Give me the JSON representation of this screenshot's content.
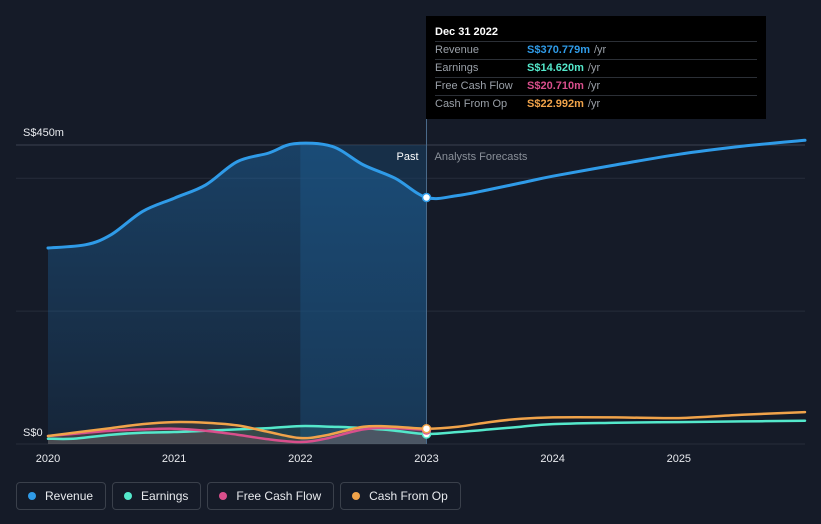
{
  "chart_data": {
    "type": "area",
    "x_ticks": [
      "2020",
      "2021",
      "2022",
      "2023",
      "2024",
      "2025"
    ],
    "ylim": [
      0,
      450
    ],
    "y_labels": {
      "top": "S$450m",
      "bottom": "S$0"
    },
    "zones": {
      "past": "Past",
      "forecast": "Analysts Forecasts"
    },
    "divider_x": 2023.0,
    "series": [
      {
        "name": "Revenue",
        "color": "#2f9be8",
        "points": [
          [
            2020.0,
            295
          ],
          [
            2020.3,
            300
          ],
          [
            2020.5,
            315
          ],
          [
            2020.75,
            350
          ],
          [
            2021.0,
            370
          ],
          [
            2021.25,
            390
          ],
          [
            2021.5,
            425
          ],
          [
            2021.75,
            438
          ],
          [
            2021.95,
            452
          ],
          [
            2022.25,
            448
          ],
          [
            2022.5,
            420
          ],
          [
            2022.75,
            400
          ],
          [
            2023.0,
            371
          ],
          [
            2023.25,
            374
          ],
          [
            2023.5,
            383
          ],
          [
            2023.75,
            393
          ],
          [
            2024.0,
            403
          ],
          [
            2024.5,
            420
          ],
          [
            2025.0,
            436
          ],
          [
            2025.5,
            448
          ],
          [
            2026.0,
            457
          ]
        ]
      },
      {
        "name": "Earnings",
        "color": "#54e8cb",
        "points": [
          [
            2020.0,
            8
          ],
          [
            2020.2,
            8
          ],
          [
            2020.5,
            14
          ],
          [
            2020.75,
            17
          ],
          [
            2021.0,
            18
          ],
          [
            2021.25,
            20
          ],
          [
            2021.5,
            22
          ],
          [
            2021.75,
            24
          ],
          [
            2022.0,
            27
          ],
          [
            2022.25,
            26
          ],
          [
            2022.5,
            24
          ],
          [
            2022.75,
            20
          ],
          [
            2023.0,
            15
          ],
          [
            2023.25,
            18
          ],
          [
            2023.5,
            22
          ],
          [
            2023.75,
            26
          ],
          [
            2024.0,
            30
          ],
          [
            2024.5,
            32
          ],
          [
            2025.0,
            33
          ],
          [
            2025.5,
            34
          ],
          [
            2026.0,
            35
          ]
        ]
      },
      {
        "name": "Free Cash Flow",
        "color": "#d94f8c",
        "points": [
          [
            2020.0,
            12
          ],
          [
            2020.25,
            16
          ],
          [
            2020.5,
            20
          ],
          [
            2020.75,
            22
          ],
          [
            2021.0,
            23
          ],
          [
            2021.25,
            20
          ],
          [
            2021.5,
            14
          ],
          [
            2021.75,
            7
          ],
          [
            2022.0,
            3
          ],
          [
            2022.2,
            8
          ],
          [
            2022.5,
            22
          ],
          [
            2022.75,
            24
          ],
          [
            2023.0,
            21
          ]
        ]
      },
      {
        "name": "Cash From Op",
        "color": "#f0a34a",
        "points": [
          [
            2020.0,
            12
          ],
          [
            2020.25,
            18
          ],
          [
            2020.5,
            24
          ],
          [
            2020.75,
            30
          ],
          [
            2021.0,
            33
          ],
          [
            2021.25,
            32
          ],
          [
            2021.5,
            28
          ],
          [
            2021.75,
            18
          ],
          [
            2022.0,
            9
          ],
          [
            2022.2,
            13
          ],
          [
            2022.5,
            26
          ],
          [
            2022.75,
            26
          ],
          [
            2023.0,
            23
          ],
          [
            2023.25,
            26
          ],
          [
            2023.5,
            33
          ],
          [
            2023.75,
            38
          ],
          [
            2024.0,
            40
          ],
          [
            2024.5,
            40
          ],
          [
            2025.0,
            39
          ],
          [
            2025.5,
            44
          ],
          [
            2026.0,
            48
          ]
        ]
      }
    ]
  },
  "tooltip": {
    "date": "Dec 31 2022",
    "unit": "/yr",
    "rows": [
      {
        "name": "Revenue",
        "value": "S$370.779m",
        "color": "#2f9be8"
      },
      {
        "name": "Earnings",
        "value": "S$14.620m",
        "color": "#54e8cb"
      },
      {
        "name": "Free Cash Flow",
        "value": "S$20.710m",
        "color": "#d94f8c"
      },
      {
        "name": "Cash From Op",
        "value": "S$22.992m",
        "color": "#f0a34a"
      }
    ]
  },
  "legend": [
    {
      "label": "Revenue",
      "color": "#2f9be8"
    },
    {
      "label": "Earnings",
      "color": "#54e8cb"
    },
    {
      "label": "Free Cash Flow",
      "color": "#d94f8c"
    },
    {
      "label": "Cash From Op",
      "color": "#f0a34a"
    }
  ]
}
